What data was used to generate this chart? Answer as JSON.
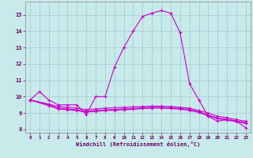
{
  "background_color": "#c8eaea",
  "grid_color": "#a8d0d0",
  "line_color": "#cc00cc",
  "xlabel": "Windchill (Refroidissement éolien,°C)",
  "xlabel_color": "#660066",
  "tick_color": "#660066",
  "ylim": [
    7.8,
    15.8
  ],
  "xlim": [
    -0.5,
    23.5
  ],
  "yticks": [
    8,
    9,
    10,
    11,
    12,
    13,
    14,
    15
  ],
  "xticks": [
    0,
    1,
    2,
    3,
    4,
    5,
    6,
    7,
    8,
    9,
    10,
    11,
    12,
    13,
    14,
    15,
    16,
    17,
    18,
    19,
    20,
    21,
    22,
    23
  ],
  "series": [
    {
      "x": [
        0,
        1,
        2,
        3,
        4,
        5,
        6,
        7,
        8,
        9,
        10,
        11,
        12,
        13,
        14,
        15,
        16,
        17,
        18,
        19,
        20,
        21,
        22,
        23
      ],
      "y": [
        9.8,
        10.3,
        9.8,
        9.5,
        9.5,
        9.5,
        8.9,
        10.0,
        10.0,
        11.8,
        13.0,
        14.0,
        14.9,
        15.1,
        15.25,
        15.1,
        13.9,
        10.8,
        9.8,
        8.8,
        8.5,
        8.6,
        8.5,
        8.1
      ]
    },
    {
      "x": [
        0,
        2,
        3,
        4,
        5,
        6,
        7,
        8,
        9,
        10,
        11,
        12,
        13,
        14,
        15,
        16,
        17,
        18,
        19,
        20,
        21,
        22,
        23
      ],
      "y": [
        9.8,
        9.55,
        9.4,
        9.35,
        9.3,
        9.2,
        9.25,
        9.3,
        9.32,
        9.35,
        9.38,
        9.4,
        9.42,
        9.42,
        9.4,
        9.35,
        9.3,
        9.15,
        9.0,
        8.8,
        8.72,
        8.6,
        8.5
      ]
    },
    {
      "x": [
        0,
        2,
        3,
        4,
        5,
        6,
        7,
        8,
        9,
        10,
        11,
        12,
        13,
        14,
        15,
        16,
        17,
        18,
        19,
        20,
        21,
        22,
        23
      ],
      "y": [
        9.8,
        9.5,
        9.3,
        9.25,
        9.2,
        9.1,
        9.15,
        9.2,
        9.22,
        9.25,
        9.28,
        9.32,
        9.35,
        9.35,
        9.32,
        9.28,
        9.22,
        9.08,
        8.88,
        8.7,
        8.62,
        8.52,
        8.42
      ]
    },
    {
      "x": [
        0,
        2,
        3,
        4,
        5,
        6,
        7,
        8,
        9,
        10,
        11,
        12,
        13,
        14,
        15,
        16,
        17,
        18,
        19,
        20,
        21,
        22,
        23
      ],
      "y": [
        9.8,
        9.45,
        9.25,
        9.2,
        9.15,
        9.05,
        9.1,
        9.15,
        9.17,
        9.2,
        9.23,
        9.27,
        9.3,
        9.3,
        9.27,
        9.23,
        9.17,
        9.03,
        8.83,
        8.65,
        8.57,
        8.47,
        8.37
      ]
    }
  ]
}
